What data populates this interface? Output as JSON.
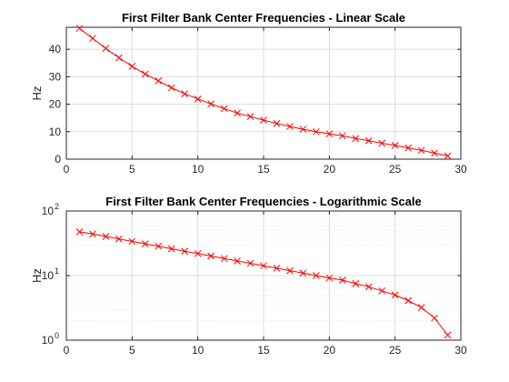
{
  "chart_data": [
    {
      "type": "line",
      "title": "First Filter Bank Center Frequencies - Linear Scale",
      "xlabel": "",
      "ylabel": "Hz",
      "yscale": "linear",
      "xlim": [
        0,
        30
      ],
      "ylim": [
        0,
        48
      ],
      "xticks": [
        0,
        5,
        10,
        15,
        20,
        25,
        30
      ],
      "yticks": [
        0,
        10,
        20,
        30,
        40
      ],
      "grid": true,
      "series": [
        {
          "color": "#ff0000",
          "marker": "x",
          "x": [
            1,
            2,
            3,
            4,
            5,
            6,
            7,
            8,
            9,
            10,
            11,
            12,
            13,
            14,
            15,
            16,
            17,
            18,
            19,
            20,
            21,
            22,
            23,
            24,
            25,
            26,
            27,
            28,
            29
          ],
          "values": [
            47.6,
            44.0,
            40.3,
            36.9,
            33.8,
            31.0,
            28.5,
            26.0,
            23.8,
            21.9,
            20.1,
            18.4,
            16.8,
            15.5,
            14.2,
            13.0,
            11.9,
            10.9,
            10.0,
            9.2,
            8.5,
            7.5,
            6.7,
            5.8,
            5.0,
            4.1,
            3.2,
            2.2,
            1.2
          ]
        }
      ]
    },
    {
      "type": "line",
      "title": "First Filter Bank Center Frequencies - Logarithmic Scale",
      "xlabel": "",
      "ylabel": "Hz",
      "yscale": "log",
      "xlim": [
        0,
        30
      ],
      "ylim": [
        1,
        100
      ],
      "xticks": [
        0,
        5,
        10,
        15,
        20,
        25,
        30
      ],
      "yticks": [
        1,
        10,
        100
      ],
      "ytick_labels": [
        "10",
        "10",
        "10"
      ],
      "ytick_exponents": [
        "0",
        "1",
        "2"
      ],
      "grid": true,
      "series": [
        {
          "color": "#ff0000",
          "marker": "x",
          "x": [
            1,
            2,
            3,
            4,
            5,
            6,
            7,
            8,
            9,
            10,
            11,
            12,
            13,
            14,
            15,
            16,
            17,
            18,
            19,
            20,
            21,
            22,
            23,
            24,
            25,
            26,
            27,
            28,
            29
          ],
          "values": [
            47.6,
            44.0,
            40.3,
            36.9,
            33.8,
            31.0,
            28.5,
            26.0,
            23.8,
            21.9,
            20.1,
            18.4,
            16.8,
            15.5,
            14.2,
            13.0,
            11.9,
            10.9,
            10.0,
            9.2,
            8.5,
            7.5,
            6.7,
            5.8,
            5.0,
            4.1,
            3.2,
            2.2,
            1.2
          ]
        }
      ]
    }
  ]
}
